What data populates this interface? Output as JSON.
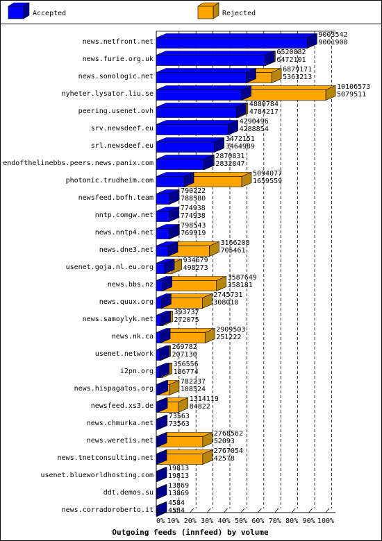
{
  "chart_data": {
    "type": "bar",
    "orientation": "horizontal",
    "stacked": true,
    "style": "3d",
    "xlabel": "Outgoing feeds (innfeed) by volume",
    "ylabel": "",
    "xlim": [
      0,
      100
    ],
    "grid": true,
    "legend_position": "top",
    "ticks": [
      "0%",
      "10%",
      "20%",
      "30%",
      "40%",
      "50%",
      "60%",
      "70%",
      "80%",
      "90%",
      "100%"
    ],
    "series": [
      {
        "name": "Accepted",
        "color": "#0000ff",
        "side_color": "#00008b"
      },
      {
        "name": "Rejected",
        "color": "#ffa500",
        "side_color": "#b8860b"
      }
    ],
    "categories": [
      "news.netfront.net",
      "news.furie.org.uk",
      "news.sonologic.net",
      "nyheter.lysator.liu.se",
      "peering.usenet.ovh",
      "srv.newsdeef.eu",
      "srl.newsdeef.eu",
      "endofthelinebbs.peers.news.panix.com",
      "photonic.trudheim.com",
      "newsfeed.bofh.team",
      "nntp.comgw.net",
      "news.nntp4.net",
      "news.dne3.net",
      "usenet.goja.nl.eu.org",
      "news.bbs.nz",
      "news.quux.org",
      "news.samoylyk.net",
      "news.nk.ca",
      "usenet.network",
      "i2pn.org",
      "news.hispagatos.org",
      "newsfeed.xs3.de",
      "news.chmurka.net",
      "news.weretis.net",
      "news.tnetconsulting.net",
      "usenet.blueworldhosting.com",
      "ddt.demos.su",
      "news.corradoroberto.it"
    ],
    "offered": [
      9003542,
      6520882,
      6879171,
      10106573,
      4880784,
      4290496,
      3472151,
      2870831,
      5094077,
      790222,
      774938,
      798543,
      3166208,
      934679,
      3587649,
      2745731,
      393737,
      2909503,
      269782,
      356556,
      782237,
      1314119,
      73563,
      2768562,
      2767054,
      19813,
      13869,
      4584
    ],
    "accepted": [
      9001900,
      6472101,
      5363213,
      5079511,
      4784217,
      4288854,
      3464989,
      2832847,
      1659559,
      788580,
      774938,
      769919,
      705461,
      498273,
      358181,
      308010,
      272075,
      251222,
      207130,
      186774,
      108524,
      84822,
      73563,
      52093,
      42578,
      19813,
      13869,
      4584
    ],
    "offered_labels": [
      "9003542",
      "6520882",
      "6879171",
      "10106573",
      "4880784",
      "4290496",
      "3472151",
      "2870831",
      "5094077",
      "790222",
      "774938",
      "798543",
      "3166208",
      "934679",
      "3587649",
      "2745731",
      "393737",
      "2909503",
      "269782",
      "356556",
      "782237",
      "1314119",
      "73563",
      "2768562",
      "2767054",
      "19813",
      "13869",
      "4584"
    ],
    "accepted_labels": [
      "9001900",
      "6472101",
      "5363213",
      "5079511",
      "4784217",
      "4288854",
      "3464989",
      "2832847",
      "1659559",
      "788580",
      "774938",
      "769919",
      "705461",
      "498273",
      "358181",
      "308010",
      "272075",
      "251222",
      "207130",
      "186774",
      "108524",
      "84822",
      "73563",
      "52093",
      "42578",
      "19813",
      "13869",
      "4584"
    ]
  }
}
